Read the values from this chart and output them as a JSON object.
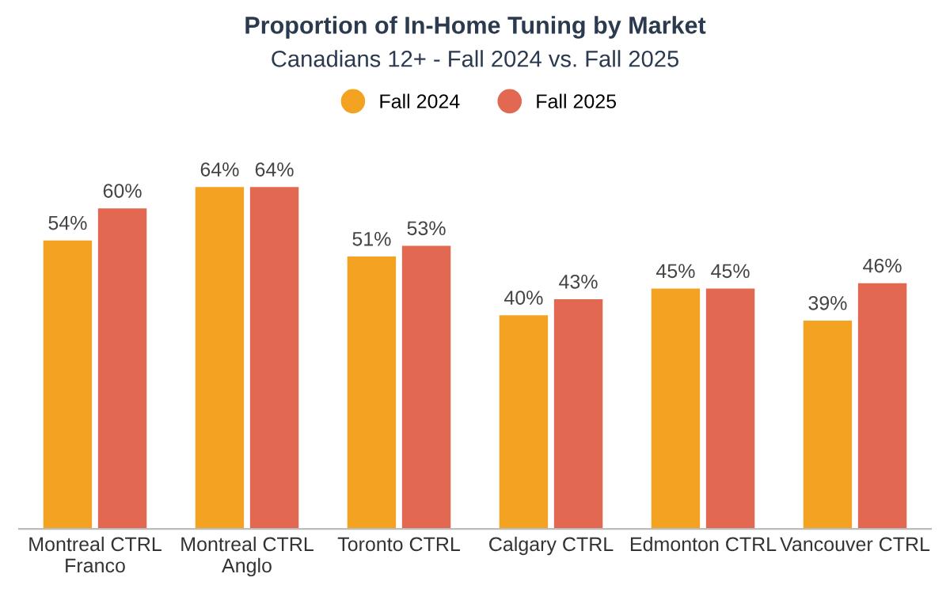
{
  "chart_data": {
    "type": "bar",
    "title": "Proportion of In-Home Tuning by Market",
    "subtitle": "Canadians 12+ - Fall 2024 vs. Fall 2025",
    "categories": [
      "Montreal CTRL\nFranco",
      "Montreal CTRL\nAnglo",
      "Toronto CTRL",
      "Calgary CTRL",
      "Edmonton CTRL",
      "Vancouver CTRL"
    ],
    "series": [
      {
        "name": "Fall 2024",
        "color": "#f3a221",
        "values": [
          54,
          64,
          51,
          40,
          45,
          39
        ],
        "value_labels": [
          "54%",
          "64%",
          "51%",
          "40%",
          "45%",
          "39%"
        ]
      },
      {
        "name": "Fall 2025",
        "color": "#e26852",
        "values": [
          60,
          64,
          53,
          43,
          45,
          46
        ],
        "value_labels": [
          "60%",
          "64%",
          "53%",
          "43%",
          "45%",
          "46%"
        ]
      }
    ],
    "legend": "top",
    "grid": false,
    "tick_labels": "x"
  }
}
